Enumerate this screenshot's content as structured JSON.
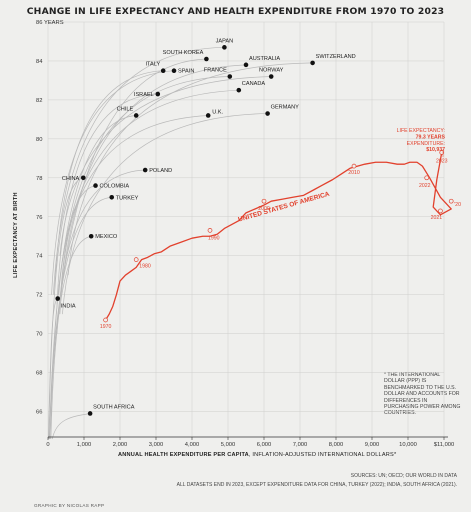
{
  "title": "CHANGE IN LIFE EXPECTANCY AND HEALTH EXPENDITURE FROM 1970 TO 2023",
  "ylabel": "LIFE EXPECTANCY AT BIRTH",
  "xlabel_bold": "ANNUAL HEALTH EXPENDITURE PER CAPITA",
  "xlabel_rest": ", INFLATION-ADJUSTED INTERNATIONAL DOLLARS*",
  "note": "* THE INTERNATIONAL DOLLAR (PPP) IS BENCHMARKED TO THE U.S. DOLLAR AND ACCOUNTS FOR DIFFERENCES IN PURCHASING POWER AMONG COUNTRIES.",
  "sources_line1": "SOURCES: UN; OECD; OUR WORLD IN DATA",
  "sources_line2": "ALL DATASETS END IN 2023, EXCEPT EXPENDITURE DATA FOR CHINA, TURKEY (2022); INDIA, SOUTH AFRICA (2021).",
  "credit": "GRAPHIC BY NICOLAS RAPP",
  "colors": {
    "us": "#e2412d",
    "gray": "#b9b9b9",
    "point": "#111111",
    "background": "#efefed"
  },
  "chart_data": {
    "type": "line",
    "title": "CHANGE IN LIFE EXPECTANCY AND HEALTH EXPENDITURE FROM 1970 TO 2023",
    "xlabel": "ANNUAL HEALTH EXPENDITURE PER CAPITA, INFLATION-ADJUSTED INTERNATIONAL DOLLARS*",
    "ylabel": "LIFE EXPECTANCY AT BIRTH",
    "xlim": [
      0,
      11000
    ],
    "ylim": [
      65,
      86
    ],
    "x_ticks": [
      {
        "v": 0,
        "label": "0"
      },
      {
        "v": 1000,
        "label": "1,000"
      },
      {
        "v": 2000,
        "label": "2,000"
      },
      {
        "v": 3000,
        "label": "3,000"
      },
      {
        "v": 4000,
        "label": "4,000"
      },
      {
        "v": 5000,
        "label": "5,000"
      },
      {
        "v": 6000,
        "label": "6,000"
      },
      {
        "v": 7000,
        "label": "7,000"
      },
      {
        "v": 8000,
        "label": "8,000"
      },
      {
        "v": 9000,
        "label": "9,000"
      },
      {
        "v": 10000,
        "label": "10,000"
      },
      {
        "v": 11000,
        "label": "$11,000"
      }
    ],
    "y_ticks": [
      {
        "v": 66,
        "label": "66"
      },
      {
        "v": 68,
        "label": "68"
      },
      {
        "v": 70,
        "label": "70"
      },
      {
        "v": 72,
        "label": "72"
      },
      {
        "v": 74,
        "label": "74"
      },
      {
        "v": 76,
        "label": "76"
      },
      {
        "v": 78,
        "label": "78"
      },
      {
        "v": 80,
        "label": "80"
      },
      {
        "v": 82,
        "label": "82"
      },
      {
        "v": 84,
        "label": "84"
      },
      {
        "v": 86,
        "label": "86 YEARS"
      }
    ],
    "grid": true,
    "countries": [
      {
        "name": "JAPAN",
        "x": 4900,
        "y": 84.7,
        "start": [
          150,
          72.0
        ],
        "labelPos": "above"
      },
      {
        "name": "SOUTH KOREA",
        "x": 4400,
        "y": 84.1,
        "start": [
          40,
          62.5
        ],
        "labelPos": "above-left"
      },
      {
        "name": "AUSTRALIA",
        "x": 5500,
        "y": 83.8,
        "start": [
          330,
          71.0
        ],
        "labelPos": "above-right"
      },
      {
        "name": "SWITZERLAND",
        "x": 7350,
        "y": 83.9,
        "start": [
          560,
          73.0
        ],
        "labelPos": "above-right"
      },
      {
        "name": "ITALY",
        "x": 3200,
        "y": 83.5,
        "start": [
          180,
          72.0
        ],
        "labelPos": "above-left"
      },
      {
        "name": "SPAIN",
        "x": 3500,
        "y": 83.5,
        "start": [
          100,
          72.0
        ],
        "labelPos": "right"
      },
      {
        "name": "FRANCE",
        "x": 5050,
        "y": 83.2,
        "start": [
          350,
          72.0
        ],
        "labelPos": "above-left"
      },
      {
        "name": "NORWAY",
        "x": 6200,
        "y": 83.2,
        "start": [
          330,
          74.0
        ],
        "labelPos": "above"
      },
      {
        "name": "CANADA",
        "x": 5300,
        "y": 82.5,
        "start": [
          380,
          72.5
        ],
        "labelPos": "above-right"
      },
      {
        "name": "ISRAEL",
        "x": 3050,
        "y": 82.3,
        "start": [
          250,
          71.5
        ],
        "labelPos": "left"
      },
      {
        "name": "CHILE",
        "x": 2450,
        "y": 81.2,
        "start": [
          40,
          63.0
        ],
        "labelPos": "above-left"
      },
      {
        "name": "U.K.",
        "x": 4450,
        "y": 81.2,
        "start": [
          300,
          72.0
        ],
        "labelPos": "right-above"
      },
      {
        "name": "GERMANY",
        "x": 6100,
        "y": 81.3,
        "start": [
          400,
          71.0
        ],
        "labelPos": "above-right"
      },
      {
        "name": "CHINA",
        "x": 980,
        "y": 78.0,
        "start": [
          20,
          60.0
        ],
        "labelPos": "left"
      },
      {
        "name": "COLOMBIA",
        "x": 1320,
        "y": 77.6,
        "start": [
          70,
          61.0
        ],
        "labelPos": "right"
      },
      {
        "name": "POLAND",
        "x": 2700,
        "y": 78.4,
        "start": [
          250,
          70.0
        ],
        "labelPos": "right"
      },
      {
        "name": "TURKEY",
        "x": 1770,
        "y": 77.0,
        "start": [
          40,
          54.0
        ],
        "labelPos": "right"
      },
      {
        "name": "MEXICO",
        "x": 1200,
        "y": 75.0,
        "start": [
          80,
          62.0
        ],
        "labelPos": "right"
      },
      {
        "name": "INDIA",
        "x": 270,
        "y": 71.8,
        "start": [
          10,
          48.0
        ],
        "labelPos": "below-right"
      },
      {
        "name": "SOUTH AFRICA",
        "x": 1170,
        "y": 65.9,
        "start": [
          120,
          57.0
        ],
        "labelPos": "above-right"
      }
    ],
    "us_series": {
      "name": "UNITED STATES OF AMERICA",
      "points": [
        [
          1600,
          70.7
        ],
        [
          1700,
          71.0
        ],
        [
          1800,
          71.4
        ],
        [
          1900,
          72.0
        ],
        [
          2000,
          72.7
        ],
        [
          2150,
          73.0
        ],
        [
          2300,
          73.2
        ],
        [
          2450,
          73.4
        ],
        [
          2600,
          73.8
        ],
        [
          2750,
          73.9
        ],
        [
          2950,
          74.1
        ],
        [
          3150,
          74.2
        ],
        [
          3400,
          74.5
        ],
        [
          3700,
          74.7
        ],
        [
          4000,
          74.9
        ],
        [
          4300,
          75.0
        ],
        [
          4500,
          75.0
        ],
        [
          4700,
          75.1
        ],
        [
          4900,
          75.4
        ],
        [
          5100,
          75.6
        ],
        [
          5300,
          75.8
        ],
        [
          5500,
          76.2
        ],
        [
          5750,
          76.4
        ],
        [
          6000,
          76.6
        ],
        [
          6200,
          76.8
        ],
        [
          6500,
          76.9
        ],
        [
          6800,
          77.0
        ],
        [
          7100,
          77.1
        ],
        [
          7400,
          77.4
        ],
        [
          7600,
          77.6
        ],
        [
          7900,
          77.9
        ],
        [
          8150,
          78.2
        ],
        [
          8400,
          78.5
        ],
        [
          8600,
          78.6
        ],
        [
          8800,
          78.7
        ],
        [
          9100,
          78.8
        ],
        [
          9400,
          78.8
        ],
        [
          9700,
          78.7
        ],
        [
          9900,
          78.7
        ],
        [
          10050,
          78.8
        ],
        [
          10250,
          78.8
        ],
        [
          10400,
          78.6
        ],
        [
          10500,
          78.3
        ],
        [
          10600,
          78.0
        ],
        [
          10900,
          77.0
        ],
        [
          11200,
          76.4
        ],
        [
          10900,
          76.1
        ],
        [
          10700,
          76.5
        ],
        [
          10800,
          77.9
        ],
        [
          10937,
          79.3
        ]
      ],
      "labels": [
        {
          "year": "1970",
          "x": 1600,
          "y": 70.7
        },
        {
          "year": "1980",
          "x": 2450,
          "y": 73.8
        },
        {
          "year": "1990",
          "x": 4500,
          "y": 75.3
        },
        {
          "year": "2000",
          "x": 6000,
          "y": 76.8
        },
        {
          "year": "2010",
          "x": 8500,
          "y": 78.6
        },
        {
          "year": "2022",
          "x": 10520,
          "y": 78.0
        },
        {
          "year": "2021",
          "x": 10900,
          "y": 76.3
        },
        {
          "year": "'20",
          "x": 11200,
          "y": 76.8
        },
        {
          "year": "2023",
          "x": 10937,
          "y": 79.3
        }
      ],
      "callout_line1": "LIFE EXPECTANCY:",
      "callout_line2": "79.3 YEARS",
      "callout_line3": "EXPENDITURE:",
      "callout_line4": "$10,937"
    }
  }
}
